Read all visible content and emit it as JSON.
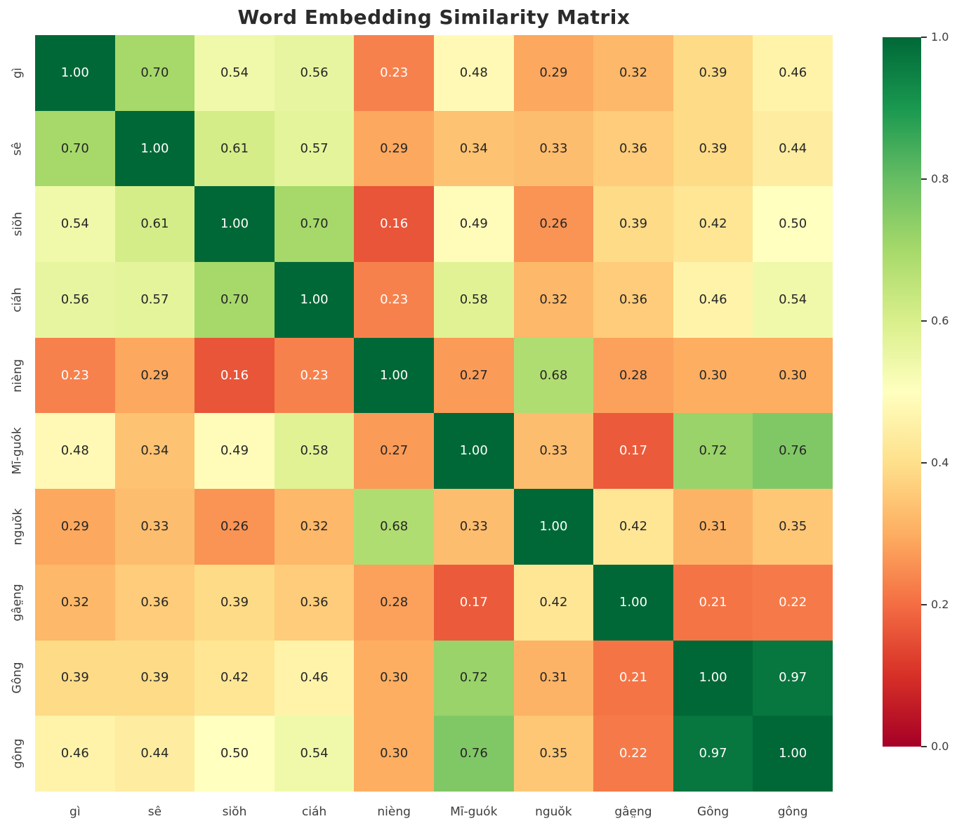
{
  "chart_data": {
    "type": "heatmap",
    "title": "Word Embedding Similarity Matrix",
    "categories": [
      "gì",
      "sê",
      "siŏh",
      "ciáh",
      "nièng",
      "Mī-guók",
      "nguŏk",
      "gâe̤ng",
      "Gông",
      "gông"
    ],
    "matrix": [
      [
        1.0,
        0.7,
        0.54,
        0.56,
        0.23,
        0.48,
        0.29,
        0.32,
        0.39,
        0.46
      ],
      [
        0.7,
        1.0,
        0.61,
        0.57,
        0.29,
        0.34,
        0.33,
        0.36,
        0.39,
        0.44
      ],
      [
        0.54,
        0.61,
        1.0,
        0.7,
        0.16,
        0.49,
        0.26,
        0.39,
        0.42,
        0.5
      ],
      [
        0.56,
        0.57,
        0.7,
        1.0,
        0.23,
        0.58,
        0.32,
        0.36,
        0.46,
        0.54
      ],
      [
        0.23,
        0.29,
        0.16,
        0.23,
        1.0,
        0.27,
        0.68,
        0.28,
        0.3,
        0.3
      ],
      [
        0.48,
        0.34,
        0.49,
        0.58,
        0.27,
        1.0,
        0.33,
        0.17,
        0.72,
        0.76
      ],
      [
        0.29,
        0.33,
        0.26,
        0.32,
        0.68,
        0.33,
        1.0,
        0.42,
        0.31,
        0.35
      ],
      [
        0.32,
        0.36,
        0.39,
        0.36,
        0.28,
        0.17,
        0.42,
        1.0,
        0.21,
        0.22
      ],
      [
        0.39,
        0.39,
        0.42,
        0.46,
        0.3,
        0.72,
        0.31,
        0.21,
        1.0,
        0.97
      ],
      [
        0.46,
        0.44,
        0.5,
        0.54,
        0.3,
        0.76,
        0.35,
        0.22,
        0.97,
        1.0
      ]
    ],
    "value_format_decimals": 2,
    "vmin": 0.0,
    "vmax": 1.0,
    "colormap": "RdYlGn",
    "colormap_stops": [
      "#a50026",
      "#d73027",
      "#f46d43",
      "#fdae61",
      "#fee08b",
      "#ffffbf",
      "#d9ef8b",
      "#a6d96a",
      "#66bd63",
      "#1a9850",
      "#006837"
    ],
    "annotation_text_dark": "#262626",
    "annotation_text_light": "#ffffff",
    "colorbar_ticks": [
      "1.0",
      "0.8",
      "0.6",
      "0.4",
      "0.2",
      "0.0"
    ],
    "legend_position": "right",
    "grid": false,
    "xlabel": "",
    "ylabel": ""
  }
}
